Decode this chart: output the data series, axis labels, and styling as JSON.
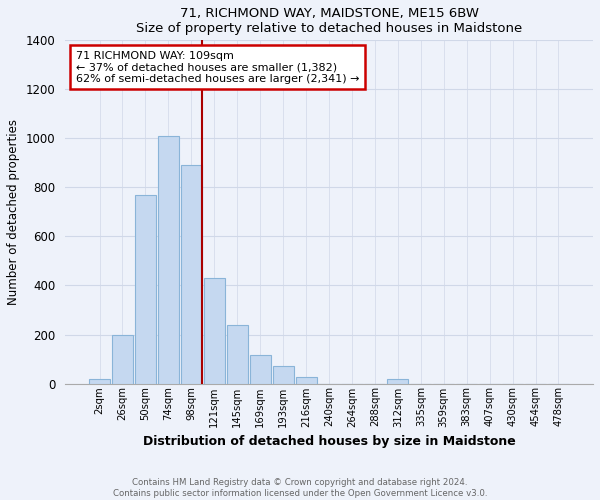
{
  "title1": "71, RICHMOND WAY, MAIDSTONE, ME15 6BW",
  "title2": "Size of property relative to detached houses in Maidstone",
  "xlabel": "Distribution of detached houses by size in Maidstone",
  "ylabel": "Number of detached properties",
  "bin_labels": [
    "2sqm",
    "26sqm",
    "50sqm",
    "74sqm",
    "98sqm",
    "121sqm",
    "145sqm",
    "169sqm",
    "193sqm",
    "216sqm",
    "240sqm",
    "264sqm",
    "288sqm",
    "312sqm",
    "335sqm",
    "359sqm",
    "383sqm",
    "407sqm",
    "430sqm",
    "454sqm",
    "478sqm"
  ],
  "bar_heights": [
    20,
    200,
    770,
    1010,
    890,
    430,
    240,
    115,
    70,
    25,
    0,
    0,
    0,
    20,
    0,
    0,
    0,
    0,
    0,
    0,
    0
  ],
  "bar_color": "#c5d8f0",
  "bar_edge_color": "#8ab4d8",
  "vline_color": "#aa0000",
  "annotation_title": "71 RICHMOND WAY: 109sqm",
  "annotation_line1": "← 37% of detached houses are smaller (1,382)",
  "annotation_line2": "62% of semi-detached houses are larger (2,341) →",
  "annotation_box_color": "#ffffff",
  "annotation_box_edge": "#cc0000",
  "ylim": [
    0,
    1400
  ],
  "yticks": [
    0,
    200,
    400,
    600,
    800,
    1000,
    1200,
    1400
  ],
  "footer1": "Contains HM Land Registry data © Crown copyright and database right 2024.",
  "footer2": "Contains public sector information licensed under the Open Government Licence v3.0.",
  "background_color": "#eef2fa",
  "plot_bg_color": "#eef2fa",
  "grid_color": "#d0d8e8",
  "vline_xindex": 4.48
}
